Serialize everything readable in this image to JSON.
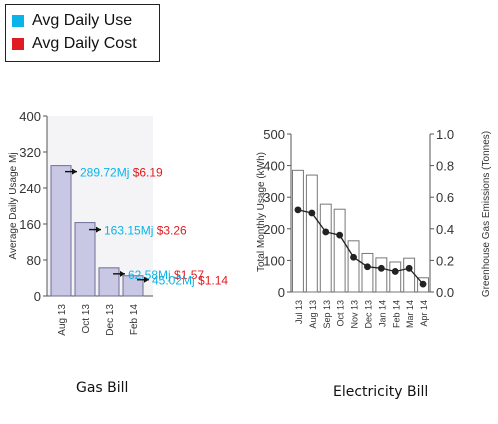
{
  "legend": {
    "use": {
      "label": "Avg Daily Use",
      "color": "#0bb4e8"
    },
    "cost": {
      "label": "Avg Daily Cost",
      "color": "#e11b22"
    }
  },
  "captions": {
    "gas": "Gas Bill",
    "electricity": "Electricity Bill"
  },
  "chart_data": [
    {
      "type": "bar",
      "ylabel": "Average Daily Usage Mj",
      "ylim": [
        0,
        400
      ],
      "yticks": [
        0,
        80,
        160,
        240,
        320,
        400
      ],
      "categories": [
        "Aug 13",
        "Oct 13",
        "Dec 13",
        "Feb 14"
      ],
      "values": [
        289.72,
        163.15,
        62.58,
        45.02
      ],
      "annotations": [
        {
          "usage": "289.72Mj",
          "cost": "$6.19"
        },
        {
          "usage": "163.15Mj",
          "cost": "$3.26"
        },
        {
          "usage": "62.58Mj",
          "cost": "$1.57"
        },
        {
          "usage": "45.02Mj",
          "cost": "$1.14"
        }
      ]
    },
    {
      "type": "bar",
      "ylabel": "Total Monthly Usage (kWh)",
      "y2label": "Greenhouse Gas Emissions (Tonnes)",
      "ylim": [
        0,
        500
      ],
      "yticks": [
        0,
        100,
        200,
        300,
        400,
        500
      ],
      "y2lim": [
        0,
        1.0
      ],
      "y2ticks": [
        "0.0",
        "0.2",
        "0.4",
        "0.6",
        "0.8",
        "1.0"
      ],
      "categories": [
        "Jul 13",
        "Aug 13",
        "Sep 13",
        "Oct 13",
        "Nov 13",
        "Dec 13",
        "Jan 14",
        "Feb 14",
        "Mar 14",
        "Apr 14"
      ],
      "values": [
        385,
        370,
        278,
        262,
        162,
        122,
        108,
        95,
        107,
        45
      ],
      "emissions": [
        0.52,
        0.5,
        0.38,
        0.36,
        0.22,
        0.16,
        0.15,
        0.13,
        0.15,
        0.05
      ]
    }
  ]
}
